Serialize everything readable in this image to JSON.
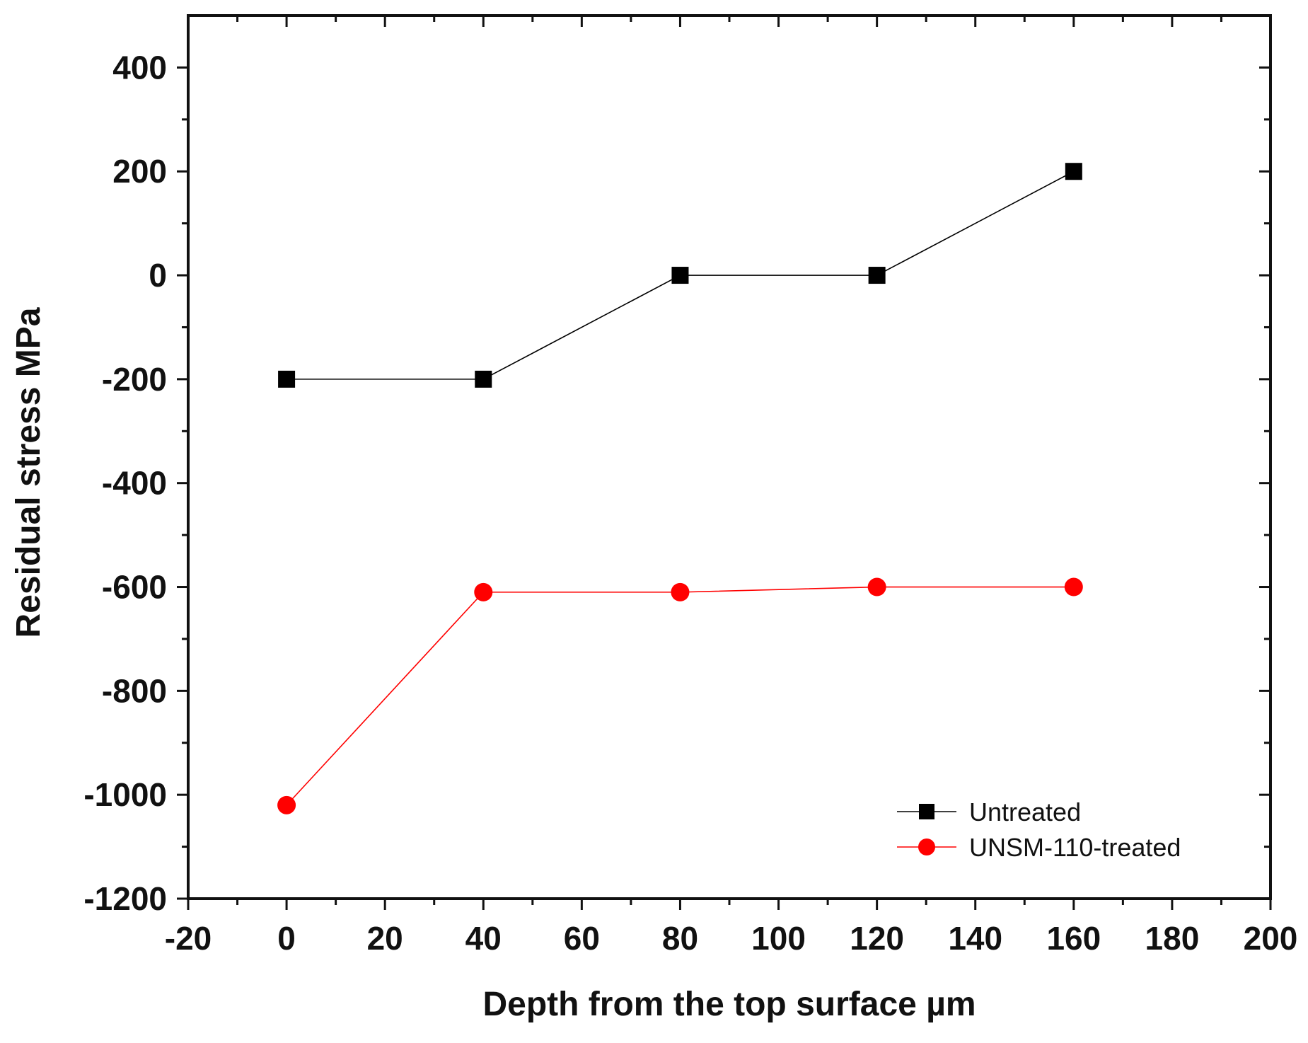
{
  "chart_data": {
    "type": "line",
    "title": "",
    "xlabel": "Depth from the top surface µm",
    "ylabel": "Residual stress MPa",
    "xlim": [
      -20,
      200
    ],
    "ylim": [
      -1200,
      500
    ],
    "x_ticks": [
      -20,
      0,
      20,
      40,
      60,
      80,
      100,
      120,
      140,
      160,
      180,
      200
    ],
    "y_ticks": [
      -1200,
      -1000,
      -800,
      -600,
      -400,
      -200,
      0,
      200,
      400
    ],
    "grid": false,
    "legend_position": "bottom-right",
    "series": [
      {
        "name": "Untreated",
        "color": "#000000",
        "marker": "square",
        "x": [
          0,
          40,
          80,
          120,
          160
        ],
        "y": [
          -200,
          -200,
          0,
          0,
          200
        ]
      },
      {
        "name": "UNSM-110-treated",
        "color": "#ff0000",
        "marker": "circle",
        "x": [
          0,
          40,
          80,
          120,
          160
        ],
        "y": [
          -1020,
          -610,
          -610,
          -600,
          -600
        ]
      }
    ]
  }
}
